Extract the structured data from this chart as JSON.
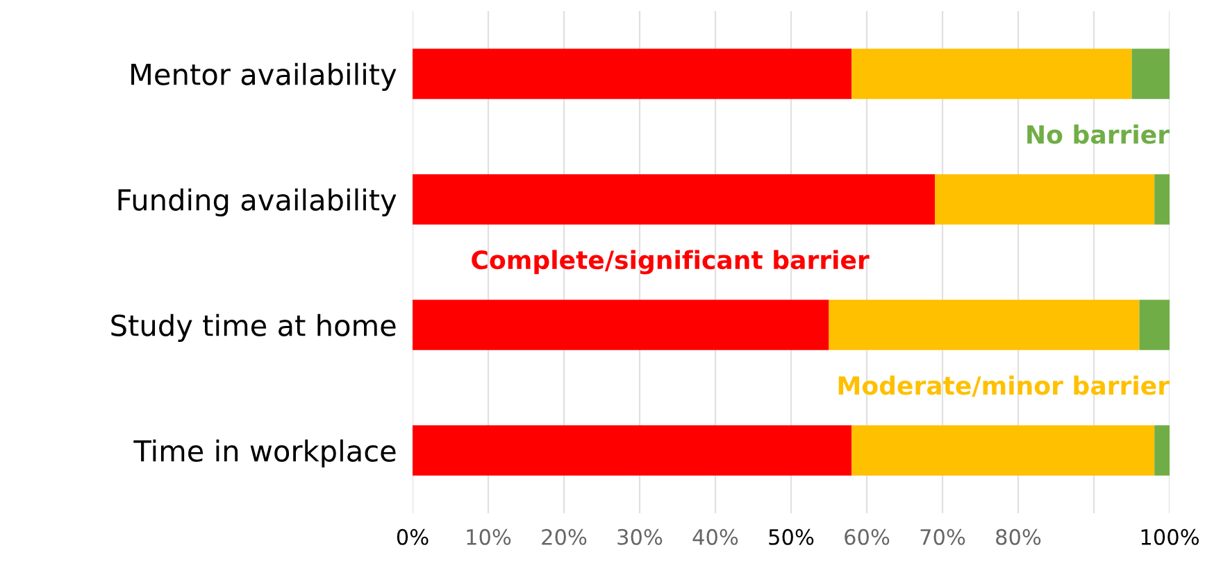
{
  "chart_data": {
    "type": "bar",
    "orientation": "horizontal",
    "stacked": true,
    "categories": [
      "Mentor availability",
      "Funding availability",
      "Study time at home",
      "Time in workplace"
    ],
    "series": [
      {
        "name": "Complete/significant barrier",
        "color": "#ff0000",
        "values": [
          58,
          69,
          55,
          58
        ]
      },
      {
        "name": "Moderate/minor barrier",
        "color": "#ffc000",
        "values": [
          37,
          29,
          41,
          40
        ]
      },
      {
        "name": "No barrier",
        "color": "#70ad47",
        "values": [
          5,
          2,
          4,
          2
        ]
      }
    ],
    "xlim": [
      0,
      100
    ],
    "xticks": [
      {
        "value": 0,
        "label": "0%"
      },
      {
        "value": 10,
        "label": "10%"
      },
      {
        "value": 20,
        "label": "20%"
      },
      {
        "value": 30,
        "label": "30%"
      },
      {
        "value": 40,
        "label": "40%"
      },
      {
        "value": 50,
        "label": "50%"
      },
      {
        "value": 60,
        "label": "60%"
      },
      {
        "value": 70,
        "label": "70%"
      },
      {
        "value": 80,
        "label": "80%"
      },
      {
        "value": 90,
        "label": null
      },
      {
        "value": 100,
        "label": "100%"
      }
    ],
    "grid": "x",
    "legend": false
  }
}
